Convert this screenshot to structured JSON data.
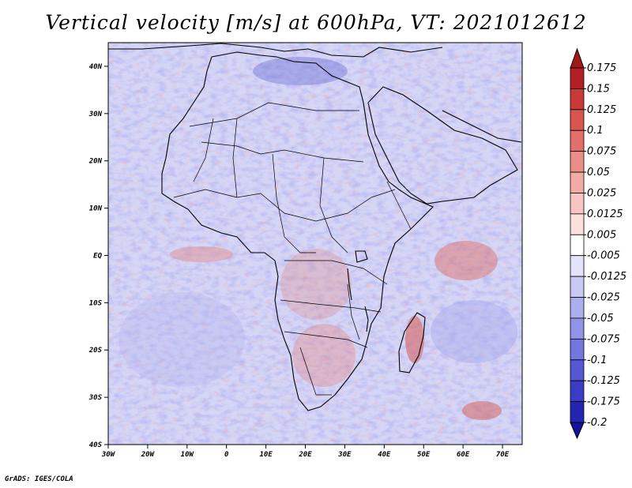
{
  "title": "Vertical velocity [m/s] at 600hPa, VT: 2021012612",
  "footer": "GrADS: IGES/COLA",
  "map": {
    "lon_range": [
      -30,
      75
    ],
    "lat_range": [
      -40,
      45
    ],
    "x_ticks": [
      {
        "lon": -30,
        "label": "30W"
      },
      {
        "lon": -20,
        "label": "20W"
      },
      {
        "lon": -10,
        "label": "10W"
      },
      {
        "lon": 0,
        "label": "0"
      },
      {
        "lon": 10,
        "label": "10E"
      },
      {
        "lon": 20,
        "label": "20E"
      },
      {
        "lon": 30,
        "label": "30E"
      },
      {
        "lon": 40,
        "label": "40E"
      },
      {
        "lon": 50,
        "label": "50E"
      },
      {
        "lon": 60,
        "label": "60E"
      },
      {
        "lon": 70,
        "label": "70E"
      }
    ],
    "y_ticks": [
      {
        "lat": 40,
        "label": "40N"
      },
      {
        "lat": 30,
        "label": "30N"
      },
      {
        "lat": 20,
        "label": "20N"
      },
      {
        "lat": 10,
        "label": "10N"
      },
      {
        "lat": 0,
        "label": "EQ"
      },
      {
        "lat": -10,
        "label": "10S"
      },
      {
        "lat": -20,
        "label": "20S"
      },
      {
        "lat": -30,
        "label": "30S"
      },
      {
        "lat": -40,
        "label": "40S"
      }
    ]
  },
  "colorbar": {
    "levels": [
      {
        "label": "0.175",
        "color": "#b21f24"
      },
      {
        "label": "0.15",
        "color": "#c83a38"
      },
      {
        "label": "0.125",
        "color": "#d85550"
      },
      {
        "label": "0.1",
        "color": "#e2706a"
      },
      {
        "label": "0.075",
        "color": "#ec8e88"
      },
      {
        "label": "0.05",
        "color": "#f2aaa5"
      },
      {
        "label": "0.025",
        "color": "#f7c6c2"
      },
      {
        "label": "0.0125",
        "color": "#fbe0dd"
      },
      {
        "label": "0.005",
        "color": "#ffffff"
      },
      {
        "label": "-0.005",
        "color": "#e3e4fb"
      },
      {
        "label": "-0.0125",
        "color": "#c9caf4"
      },
      {
        "label": "-0.025",
        "color": "#acaeee"
      },
      {
        "label": "-0.05",
        "color": "#9193e6"
      },
      {
        "label": "-0.075",
        "color": "#7376de"
      },
      {
        "label": "-0.1",
        "color": "#5558d2"
      },
      {
        "label": "-0.125",
        "color": "#3a3cc4"
      },
      {
        "label": "-0.175",
        "color": "#2324b2"
      },
      {
        "label": "-0.2",
        "color": "#1a1aa0"
      }
    ],
    "top_color": "#a01818",
    "bottom_color": "#14149a"
  },
  "colors": {
    "ocean_base": "#d5d6f6",
    "land_base": "#cfd0f3",
    "border": "#000000",
    "frame": "#000000"
  }
}
